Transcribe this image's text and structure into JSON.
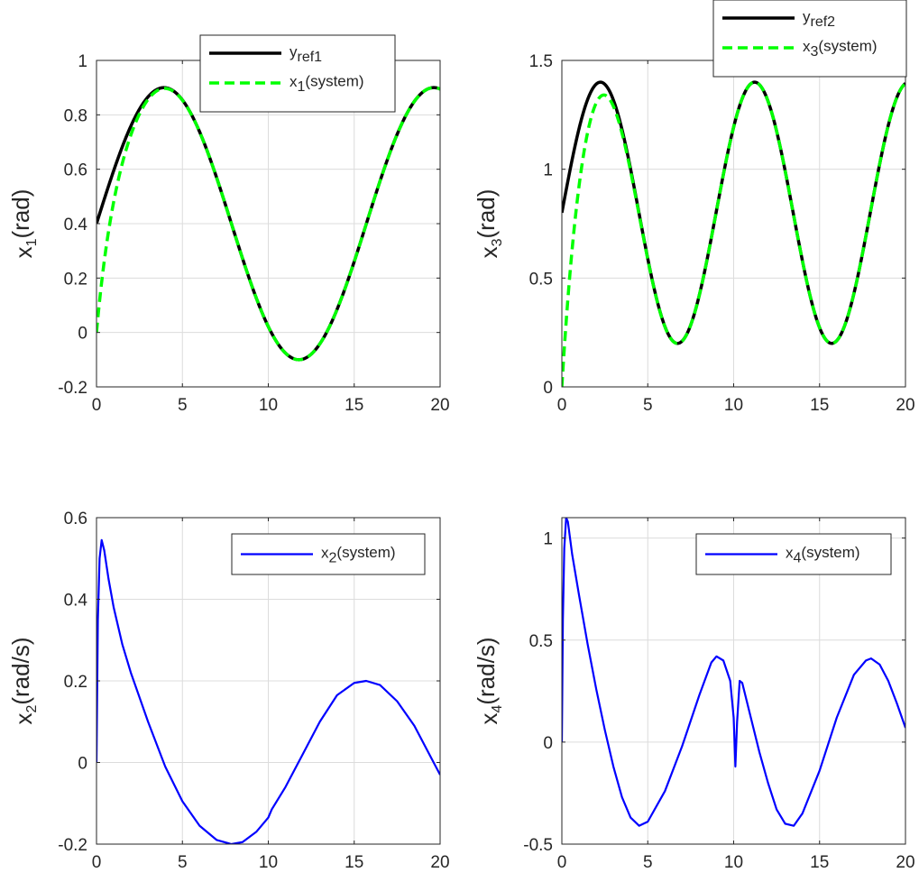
{
  "figure": {
    "background": "#ffffff",
    "axis_color": "#262626",
    "grid_color": "#dcdcdc"
  },
  "chart_data": [
    {
      "type": "line",
      "name": "x1-panel",
      "ylabel": {
        "base": "x",
        "sub": "1",
        "rest": "(rad)"
      },
      "xlim": [
        0,
        20
      ],
      "ylim": [
        -0.2,
        1
      ],
      "xticks": [
        0,
        5,
        10,
        15,
        20
      ],
      "xtick_labels": [
        "0",
        "5",
        "10",
        "15",
        "20"
      ],
      "yticks": [
        -0.2,
        0,
        0.2,
        0.4,
        0.6,
        0.8,
        1
      ],
      "ytick_labels": [
        "-0.2",
        "0",
        "0.2",
        "0.4",
        "0.6",
        "0.8",
        "1"
      ],
      "grid": true,
      "legend_position": "top-right",
      "series": [
        {
          "name": "yref1",
          "label": {
            "base": "y",
            "sub": "ref1",
            "rest": ""
          },
          "color": "#000000",
          "dash": "solid",
          "formula": {
            "kind": "sine",
            "offset": 0.4,
            "amp": 0.5,
            "omega": 0.4
          }
        },
        {
          "name": "x1-system",
          "label": {
            "base": "x",
            "sub": "1",
            "rest": "(system)"
          },
          "color": "#00ff00",
          "dash": "dashed",
          "formula": {
            "kind": "tracking-sine",
            "offset": 0.4,
            "amp": 0.5,
            "omega": 0.4,
            "start": 0,
            "tau": 0.8
          }
        }
      ]
    },
    {
      "type": "line",
      "name": "x3-panel",
      "ylabel": {
        "base": "x",
        "sub": "3",
        "rest": "(rad)"
      },
      "xlim": [
        0,
        20
      ],
      "ylim": [
        0,
        1.5
      ],
      "xticks": [
        0,
        5,
        10,
        15,
        20
      ],
      "xtick_labels": [
        "0",
        "5",
        "10",
        "15",
        "20"
      ],
      "yticks": [
        0,
        0.5,
        1,
        1.5
      ],
      "ytick_labels": [
        "0",
        "0.5",
        "1",
        "1.5"
      ],
      "grid": true,
      "legend_position": "top-right",
      "series": [
        {
          "name": "yref2",
          "label": {
            "base": "y",
            "sub": "ref2",
            "rest": ""
          },
          "color": "#000000",
          "dash": "solid",
          "formula": {
            "kind": "sine",
            "offset": 0.8,
            "amp": 0.6,
            "omega": 0.7
          }
        },
        {
          "name": "x3-system",
          "label": {
            "base": "x",
            "sub": "3",
            "rest": "(system)"
          },
          "color": "#00ff00",
          "dash": "dashed",
          "formula": {
            "kind": "tracking-sine",
            "offset": 0.8,
            "amp": 0.6,
            "omega": 0.7,
            "start": 0,
            "tau": 0.9
          }
        }
      ]
    },
    {
      "type": "line",
      "name": "x2-panel",
      "ylabel": {
        "base": "x",
        "sub": "2",
        "rest": "(rad/s)"
      },
      "xlim": [
        0,
        20
      ],
      "ylim": [
        -0.2,
        0.6
      ],
      "xticks": [
        0,
        5,
        10,
        15,
        20
      ],
      "xtick_labels": [
        "0",
        "5",
        "10",
        "15",
        "20"
      ],
      "yticks": [
        -0.2,
        0,
        0.2,
        0.4,
        0.6
      ],
      "ytick_labels": [
        "-0.2",
        "0",
        "0.2",
        "0.4",
        "0.6"
      ],
      "grid": true,
      "legend_position": "top-right",
      "series": [
        {
          "name": "x2-system",
          "label": {
            "base": "x",
            "sub": "2",
            "rest": "(system)"
          },
          "color": "#0000ff",
          "dash": "solid",
          "points": [
            [
              0,
              0
            ],
            [
              0.08,
              0.35
            ],
            [
              0.18,
              0.5
            ],
            [
              0.3,
              0.545
            ],
            [
              0.45,
              0.52
            ],
            [
              0.7,
              0.45
            ],
            [
              1,
              0.38
            ],
            [
              1.5,
              0.29
            ],
            [
              2,
              0.22
            ],
            [
              3,
              0.1
            ],
            [
              4,
              -0.01
            ],
            [
              5,
              -0.095
            ],
            [
              6,
              -0.155
            ],
            [
              7,
              -0.19
            ],
            [
              7.85,
              -0.2
            ],
            [
              8.5,
              -0.195
            ],
            [
              9.3,
              -0.17
            ],
            [
              10,
              -0.135
            ],
            [
              10.2,
              -0.115
            ],
            [
              11,
              -0.06
            ],
            [
              12,
              0.02
            ],
            [
              13,
              0.1
            ],
            [
              14,
              0.165
            ],
            [
              15,
              0.195
            ],
            [
              15.7,
              0.2
            ],
            [
              16.5,
              0.19
            ],
            [
              17.5,
              0.15
            ],
            [
              18.5,
              0.09
            ],
            [
              19.5,
              0.01
            ],
            [
              20,
              -0.03
            ]
          ]
        }
      ]
    },
    {
      "type": "line",
      "name": "x4-panel",
      "ylabel": {
        "base": "x",
        "sub": "4",
        "rest": "(rad/s)"
      },
      "xlim": [
        0,
        20
      ],
      "ylim": [
        -0.5,
        1.1
      ],
      "xticks": [
        0,
        5,
        10,
        15,
        20
      ],
      "xtick_labels": [
        "0",
        "5",
        "10",
        "15",
        "20"
      ],
      "yticks": [
        -0.5,
        0,
        0.5,
        1
      ],
      "ytick_labels": [
        "-0.5",
        "0",
        "0.5",
        "1"
      ],
      "grid": true,
      "legend_position": "top-right",
      "series": [
        {
          "name": "x4-system",
          "label": {
            "base": "x",
            "sub": "4",
            "rest": "(system)"
          },
          "color": "#0000ff",
          "dash": "solid",
          "points": [
            [
              0,
              0
            ],
            [
              0.06,
              0.6
            ],
            [
              0.14,
              0.95
            ],
            [
              0.25,
              1.1
            ],
            [
              0.35,
              1.08
            ],
            [
              0.6,
              0.92
            ],
            [
              1,
              0.72
            ],
            [
              1.5,
              0.48
            ],
            [
              2,
              0.26
            ],
            [
              2.5,
              0.06
            ],
            [
              3,
              -0.12
            ],
            [
              3.5,
              -0.27
            ],
            [
              4,
              -0.37
            ],
            [
              4.5,
              -0.41
            ],
            [
              5,
              -0.39
            ],
            [
              6,
              -0.24
            ],
            [
              7,
              -0.02
            ],
            [
              8,
              0.23
            ],
            [
              8.7,
              0.39
            ],
            [
              9,
              0.42
            ],
            [
              9.4,
              0.4
            ],
            [
              9.8,
              0.3
            ],
            [
              10.0,
              0.12
            ],
            [
              10.1,
              -0.12
            ],
            [
              10.2,
              0.1
            ],
            [
              10.35,
              0.3
            ],
            [
              10.5,
              0.29
            ],
            [
              11,
              0.12
            ],
            [
              11.5,
              -0.05
            ],
            [
              12,
              -0.2
            ],
            [
              12.5,
              -0.33
            ],
            [
              13,
              -0.4
            ],
            [
              13.5,
              -0.41
            ],
            [
              14,
              -0.35
            ],
            [
              15,
              -0.14
            ],
            [
              16,
              0.12
            ],
            [
              17,
              0.33
            ],
            [
              17.7,
              0.4
            ],
            [
              18,
              0.41
            ],
            [
              18.5,
              0.38
            ],
            [
              19,
              0.3
            ],
            [
              19.5,
              0.19
            ],
            [
              20,
              0.07
            ]
          ]
        }
      ]
    }
  ]
}
